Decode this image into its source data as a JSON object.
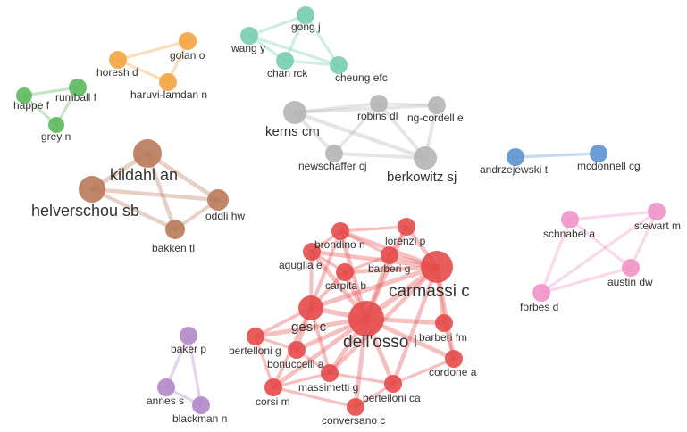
{
  "network": {
    "clusters": [
      {
        "id": "green",
        "color": "#5cb85c"
      },
      {
        "id": "orange",
        "color": "#f4a340"
      },
      {
        "id": "teal",
        "color": "#77cdb0"
      },
      {
        "id": "grey",
        "color": "#b5b5b5"
      },
      {
        "id": "blue",
        "color": "#5b93cf"
      },
      {
        "id": "brown",
        "color": "#b9795a"
      },
      {
        "id": "pink",
        "color": "#ef94c8"
      },
      {
        "id": "purple",
        "color": "#b187c8"
      },
      {
        "id": "red",
        "color": "#e64a4a"
      }
    ],
    "nodes": [
      {
        "id": "happe",
        "label": "happe f",
        "cluster": "green"
      },
      {
        "id": "rumball",
        "label": "rumball f",
        "cluster": "green"
      },
      {
        "id": "grey",
        "label": "grey n",
        "cluster": "green"
      },
      {
        "id": "horesh",
        "label": "horesh d",
        "cluster": "orange"
      },
      {
        "id": "golan",
        "label": "golan o",
        "cluster": "orange"
      },
      {
        "id": "haruvi",
        "label": "haruvi-lamdan n",
        "cluster": "orange"
      },
      {
        "id": "gong",
        "label": "gong j",
        "cluster": "teal"
      },
      {
        "id": "wang",
        "label": "wang y",
        "cluster": "teal"
      },
      {
        "id": "chan",
        "label": "chan rck",
        "cluster": "teal"
      },
      {
        "id": "cheung",
        "label": "cheung efc",
        "cluster": "teal"
      },
      {
        "id": "kerns",
        "label": "kerns cm",
        "cluster": "grey"
      },
      {
        "id": "robins",
        "label": "robins dl",
        "cluster": "grey"
      },
      {
        "id": "ngcordell",
        "label": "ng-cordell e",
        "cluster": "grey"
      },
      {
        "id": "newschaffer",
        "label": "newschaffer cj",
        "cluster": "grey"
      },
      {
        "id": "berkowitz",
        "label": "berkowitz sj",
        "cluster": "grey"
      },
      {
        "id": "andrzejewski",
        "label": "andrzejewski t",
        "cluster": "blue"
      },
      {
        "id": "mcdonnell",
        "label": "mcdonnell cg",
        "cluster": "blue"
      },
      {
        "id": "kildahl",
        "label": "kildahl an",
        "cluster": "brown"
      },
      {
        "id": "helverschou",
        "label": "helverschou sb",
        "cluster": "brown"
      },
      {
        "id": "oddli",
        "label": "oddli hw",
        "cluster": "brown"
      },
      {
        "id": "bakken",
        "label": "bakken tl",
        "cluster": "brown"
      },
      {
        "id": "schnabel",
        "label": "schnabel a",
        "cluster": "pink"
      },
      {
        "id": "stewart",
        "label": "stewart m",
        "cluster": "pink"
      },
      {
        "id": "austin",
        "label": "austin dw",
        "cluster": "pink"
      },
      {
        "id": "forbes",
        "label": "forbes d",
        "cluster": "pink"
      },
      {
        "id": "baker",
        "label": "baker p",
        "cluster": "purple"
      },
      {
        "id": "annes",
        "label": "annes s",
        "cluster": "purple"
      },
      {
        "id": "blackman",
        "label": "blackman n",
        "cluster": "purple"
      },
      {
        "id": "brondino",
        "label": "brondino n",
        "cluster": "red"
      },
      {
        "id": "lorenzi",
        "label": "lorenzi p",
        "cluster": "red"
      },
      {
        "id": "aguglia",
        "label": "aguglia e",
        "cluster": "red"
      },
      {
        "id": "barberig",
        "label": "barberi g",
        "cluster": "red"
      },
      {
        "id": "carpita",
        "label": "carpita b",
        "cluster": "red"
      },
      {
        "id": "carmassi",
        "label": "carmassi c",
        "cluster": "red"
      },
      {
        "id": "gesi",
        "label": "gesi c",
        "cluster": "red"
      },
      {
        "id": "dellosso",
        "label": "dell'osso l",
        "cluster": "red"
      },
      {
        "id": "barberifm",
        "label": "barberi fm",
        "cluster": "red"
      },
      {
        "id": "bertellonig",
        "label": "bertelloni g",
        "cluster": "red"
      },
      {
        "id": "bonuccelli",
        "label": "bonuccelli a",
        "cluster": "red"
      },
      {
        "id": "cordone",
        "label": "cordone a",
        "cluster": "red"
      },
      {
        "id": "massimetti",
        "label": "massimetti g",
        "cluster": "red"
      },
      {
        "id": "corsi",
        "label": "corsi m",
        "cluster": "red"
      },
      {
        "id": "bertelloniCa",
        "label": "bertelloni ca",
        "cluster": "red"
      },
      {
        "id": "conversano",
        "label": "conversano c",
        "cluster": "red"
      }
    ],
    "links": [
      [
        "happe",
        "rumball"
      ],
      [
        "happe",
        "grey"
      ],
      [
        "rumball",
        "grey"
      ],
      [
        "horesh",
        "golan"
      ],
      [
        "horesh",
        "haruvi"
      ],
      [
        "golan",
        "haruvi"
      ],
      [
        "gong",
        "wang"
      ],
      [
        "gong",
        "cheung"
      ],
      [
        "wang",
        "chan"
      ],
      [
        "wang",
        "cheung"
      ],
      [
        "chan",
        "cheung"
      ],
      [
        "gong",
        "chan"
      ],
      [
        "kerns",
        "robins"
      ],
      [
        "kerns",
        "ngcordell"
      ],
      [
        "kerns",
        "newschaffer"
      ],
      [
        "kerns",
        "berkowitz"
      ],
      [
        "robins",
        "berkowitz"
      ],
      [
        "ngcordell",
        "berkowitz"
      ],
      [
        "newschaffer",
        "berkowitz"
      ],
      [
        "robins",
        "ngcordell"
      ],
      [
        "robins",
        "newschaffer"
      ],
      [
        "andrzejewski",
        "mcdonnell"
      ],
      [
        "kildahl",
        "helverschou"
      ],
      [
        "kildahl",
        "oddli"
      ],
      [
        "kildahl",
        "bakken"
      ],
      [
        "helverschou",
        "oddli"
      ],
      [
        "helverschou",
        "bakken"
      ],
      [
        "oddli",
        "bakken"
      ],
      [
        "schnabel",
        "stewart"
      ],
      [
        "schnabel",
        "austin"
      ],
      [
        "schnabel",
        "forbes"
      ],
      [
        "stewart",
        "austin"
      ],
      [
        "stewart",
        "forbes"
      ],
      [
        "austin",
        "forbes"
      ],
      [
        "baker",
        "annes"
      ],
      [
        "baker",
        "blackman"
      ],
      [
        "annes",
        "blackman"
      ],
      [
        "dellosso",
        "carmassi"
      ],
      [
        "dellosso",
        "gesi"
      ],
      [
        "dellosso",
        "barberifm"
      ],
      [
        "dellosso",
        "bertellonig"
      ],
      [
        "dellosso",
        "bonuccelli"
      ],
      [
        "dellosso",
        "cordone"
      ],
      [
        "dellosso",
        "massimetti"
      ],
      [
        "dellosso",
        "corsi"
      ],
      [
        "dellosso",
        "bertelloniCa"
      ],
      [
        "dellosso",
        "conversano"
      ],
      [
        "dellosso",
        "brondino"
      ],
      [
        "dellosso",
        "lorenzi"
      ],
      [
        "dellosso",
        "aguglia"
      ],
      [
        "dellosso",
        "barberig"
      ],
      [
        "dellosso",
        "carpita"
      ],
      [
        "carmassi",
        "gesi"
      ],
      [
        "carmassi",
        "barberig"
      ],
      [
        "carmassi",
        "lorenzi"
      ],
      [
        "carmassi",
        "brondino"
      ],
      [
        "carmassi",
        "carpita"
      ],
      [
        "carmassi",
        "aguglia"
      ],
      [
        "carmassi",
        "barberifm"
      ],
      [
        "carmassi",
        "cordone"
      ],
      [
        "carmassi",
        "massimetti"
      ],
      [
        "carmassi",
        "bertelloniCa"
      ],
      [
        "gesi",
        "aguglia"
      ],
      [
        "gesi",
        "carpita"
      ],
      [
        "gesi",
        "bertellonig"
      ],
      [
        "gesi",
        "bonuccelli"
      ],
      [
        "gesi",
        "corsi"
      ],
      [
        "gesi",
        "massimetti"
      ],
      [
        "gesi",
        "brondino"
      ],
      [
        "brondino",
        "lorenzi"
      ],
      [
        "brondino",
        "barberig"
      ],
      [
        "brondino",
        "aguglia"
      ],
      [
        "lorenzi",
        "barberig"
      ],
      [
        "aguglia",
        "carpita"
      ],
      [
        "barberig",
        "carpita"
      ],
      [
        "bertellonig",
        "bonuccelli"
      ],
      [
        "bertellonig",
        "corsi"
      ],
      [
        "bonuccelli",
        "massimetti"
      ],
      [
        "massimetti",
        "corsi"
      ],
      [
        "massimetti",
        "bertelloniCa"
      ],
      [
        "bertelloniCa",
        "conversano"
      ],
      [
        "corsi",
        "conversano"
      ],
      [
        "barberifm",
        "cordone"
      ],
      [
        "cordone",
        "bertelloniCa"
      ]
    ]
  }
}
